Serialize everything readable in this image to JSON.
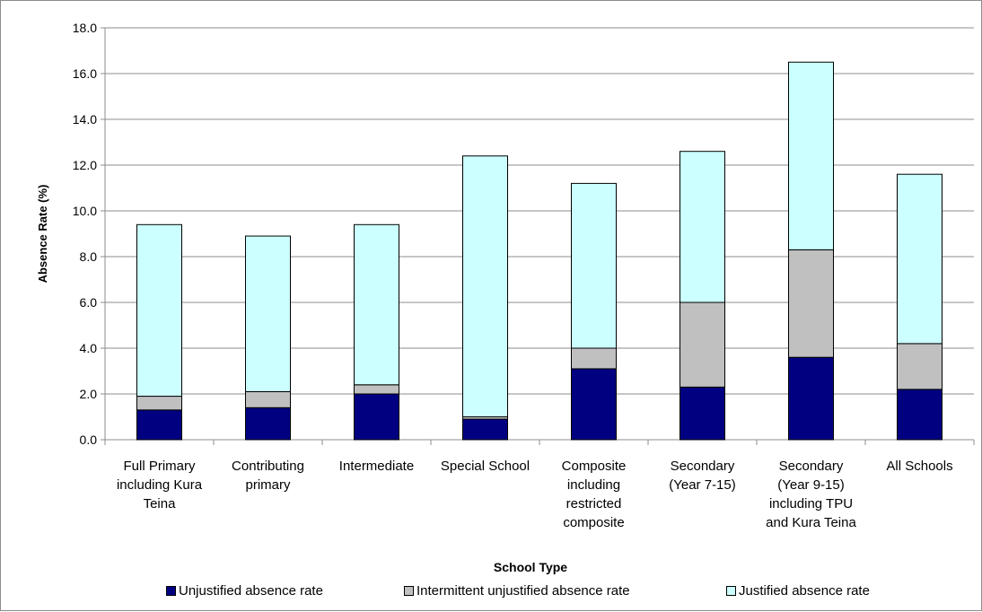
{
  "chart_data": {
    "type": "bar",
    "stacked": true,
    "title": "",
    "xlabel": "School Type",
    "ylabel": "Absence Rate (%)",
    "ylim": [
      0,
      18
    ],
    "yticks": [
      "0.0",
      "2.0",
      "4.0",
      "6.0",
      "8.0",
      "10.0",
      "12.0",
      "14.0",
      "16.0",
      "18.0"
    ],
    "grid": true,
    "legend_position": "bottom",
    "categories": [
      [
        "Full Primary",
        "including Kura",
        "Teina"
      ],
      [
        "Contributing",
        "primary"
      ],
      [
        "Intermediate"
      ],
      [
        "Special School"
      ],
      [
        "Composite",
        "including",
        "restricted",
        "composite"
      ],
      [
        "Secondary",
        "(Year 7-15)"
      ],
      [
        "Secondary",
        "(Year 9-15)",
        "including TPU",
        "and Kura Teina"
      ],
      [
        "All Schools"
      ]
    ],
    "series": [
      {
        "name": "Unjustified absence rate",
        "color": "#000080",
        "values": [
          1.3,
          1.4,
          2.0,
          0.9,
          3.1,
          2.3,
          3.6,
          2.2
        ]
      },
      {
        "name": "Intermittent unjustified absence rate",
        "color": "#c0c0c0",
        "values": [
          0.6,
          0.7,
          0.4,
          0.1,
          0.9,
          3.7,
          4.7,
          2.0
        ]
      },
      {
        "name": "Justified absence rate",
        "color": "#ccffff",
        "values": [
          7.5,
          6.8,
          7.0,
          11.4,
          7.2,
          6.6,
          8.2,
          7.4
        ]
      }
    ]
  }
}
